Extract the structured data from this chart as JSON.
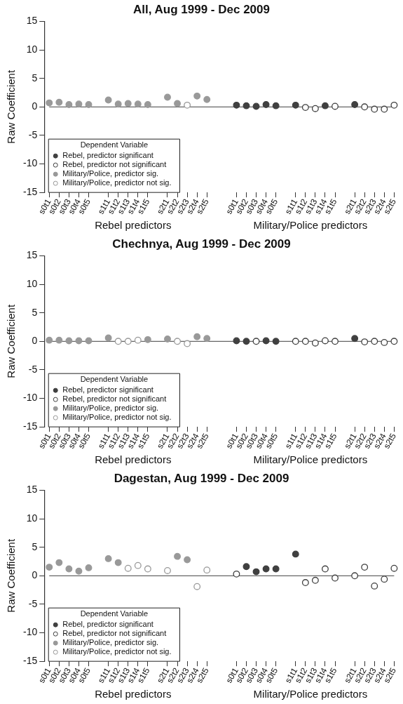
{
  "chart_data": [
    {
      "type": "scatter",
      "title": "All, Aug 1999 - Dec 2009",
      "ylabel": "Raw Coefficient",
      "legend_title": "Dependent Variable",
      "legend": "bottom left",
      "ylim": [
        -15,
        15
      ],
      "yticks": [
        -15,
        -10,
        -5,
        0,
        5,
        10,
        15
      ],
      "grid": false,
      "categories": [
        "s0t1",
        "s0t2",
        "s0t3",
        "s0t4",
        "s0t5",
        null,
        "s1t1",
        "s1t2",
        "s1t3",
        "s1t4",
        "s1t5",
        null,
        "s2t1",
        "s2t2",
        "s2t3",
        "s2t4",
        "s2t5",
        null,
        null,
        "s0t1",
        "s0t2",
        "s0t3",
        "s0t4",
        "s0t5",
        null,
        "s1t1",
        "s1t2",
        "s1t3",
        "s1t4",
        "s1t5",
        null,
        "s2t1",
        "s2t2",
        "s2t3",
        "s2t4",
        "s2t5"
      ],
      "ref_lines": [
        {
          "axis": "y",
          "value": 0,
          "color": "#666666"
        }
      ],
      "annotations": [
        "Rebel predictors",
        "Military/Police predictors"
      ],
      "series": [
        {
          "name": "Rebel, predictor significant",
          "color": "#404040",
          "marker": "circle",
          "values": [
            null,
            null,
            null,
            null,
            null,
            null,
            null,
            null,
            null,
            null,
            null,
            null,
            null,
            null,
            null,
            null,
            null,
            null,
            null,
            0.3,
            0.2,
            0.1,
            0.4,
            0.2,
            null,
            0.3,
            null,
            null,
            0.2,
            null,
            null,
            0.4,
            null,
            null,
            null,
            null
          ]
        },
        {
          "name": "Rebel, predictor not significant",
          "color": "#404040",
          "marker": "open circle",
          "values": [
            null,
            null,
            null,
            null,
            null,
            null,
            null,
            null,
            null,
            null,
            null,
            null,
            null,
            null,
            null,
            null,
            null,
            null,
            null,
            null,
            null,
            null,
            null,
            null,
            null,
            null,
            -0.1,
            -0.3,
            null,
            0.1,
            null,
            null,
            0,
            -0.4,
            -0.4,
            0.3
          ]
        },
        {
          "name": "Military/Police, predictor sig.",
          "color": "#999999",
          "marker": "circle",
          "values": [
            0.7,
            0.8,
            0.4,
            0.5,
            0.4,
            null,
            1.2,
            0.5,
            0.6,
            0.5,
            0.4,
            null,
            1.7,
            0.6,
            null,
            1.9,
            1.3,
            null,
            null,
            null,
            null,
            null,
            null,
            null,
            null,
            null,
            null,
            null,
            null,
            null,
            null,
            null,
            null,
            null,
            null,
            null
          ]
        },
        {
          "name": "Military/Police, predictor not sig.",
          "color": "#999999",
          "marker": "open circle",
          "values": [
            null,
            null,
            null,
            null,
            null,
            null,
            null,
            null,
            null,
            null,
            null,
            null,
            null,
            null,
            0.3,
            null,
            null,
            null,
            null,
            null,
            null,
            null,
            null,
            null,
            null,
            null,
            null,
            null,
            null,
            null,
            null,
            null,
            null,
            null,
            null,
            null
          ]
        }
      ]
    },
    {
      "type": "scatter",
      "title": "Chechnya, Aug 1999 - Dec 2009",
      "ylabel": "Raw Coefficient",
      "legend_title": "Dependent Variable",
      "legend": "bottom left",
      "ylim": [
        -15,
        15
      ],
      "yticks": [
        -15,
        -10,
        -5,
        0,
        5,
        10,
        15
      ],
      "grid": false,
      "categories": [
        "s0t1",
        "s0t2",
        "s0t3",
        "s0t4",
        "s0t5",
        null,
        "s1t1",
        "s1t2",
        "s1t3",
        "s1t4",
        "s1t5",
        null,
        "s2t1",
        "s2t2",
        "s2t3",
        "s2t4",
        "s2t5",
        null,
        null,
        "s0t1",
        "s0t2",
        "s0t3",
        "s0t4",
        "s0t5",
        null,
        "s1t1",
        "s1t2",
        "s1t3",
        "s1t4",
        "s1t5",
        null,
        "s2t1",
        "s2t2",
        "s2t3",
        "s2t4",
        "s2t5"
      ],
      "ref_lines": [
        {
          "axis": "y",
          "value": 0,
          "color": "#666666"
        }
      ],
      "annotations": [
        "Rebel predictors",
        "Military/Police predictors"
      ],
      "series": [
        {
          "name": "Rebel, predictor significant",
          "color": "#404040",
          "marker": "circle",
          "values": [
            null,
            null,
            null,
            null,
            null,
            null,
            null,
            null,
            null,
            null,
            null,
            null,
            null,
            null,
            null,
            null,
            null,
            null,
            null,
            0.1,
            0,
            null,
            0.1,
            0,
            null,
            null,
            null,
            null,
            null,
            null,
            null,
            0.5,
            null,
            null,
            null,
            null
          ]
        },
        {
          "name": "Rebel, predictor not significant",
          "color": "#404040",
          "marker": "open circle",
          "values": [
            null,
            null,
            null,
            null,
            null,
            null,
            null,
            null,
            null,
            null,
            null,
            null,
            null,
            null,
            null,
            null,
            null,
            null,
            null,
            null,
            null,
            0,
            null,
            null,
            null,
            0,
            0,
            -0.3,
            0.1,
            0,
            null,
            null,
            -0.1,
            0,
            -0.2,
            0
          ]
        },
        {
          "name": "Military/Police, predictor sig.",
          "color": "#999999",
          "marker": "circle",
          "values": [
            0.2,
            0.2,
            0.1,
            0.1,
            0.1,
            null,
            0.6,
            null,
            null,
            null,
            0.3,
            null,
            0.4,
            null,
            null,
            0.8,
            0.5,
            null,
            null,
            null,
            null,
            null,
            null,
            null,
            null,
            null,
            null,
            null,
            null,
            null,
            null,
            null,
            null,
            null,
            null,
            null
          ]
        },
        {
          "name": "Military/Police, predictor not sig.",
          "color": "#999999",
          "marker": "open circle",
          "values": [
            null,
            null,
            null,
            null,
            null,
            null,
            null,
            0,
            0,
            0.2,
            null,
            null,
            null,
            0,
            -0.4,
            null,
            null,
            null,
            null,
            null,
            null,
            null,
            null,
            null,
            null,
            null,
            null,
            null,
            null,
            null,
            null,
            null,
            null,
            null,
            null,
            null
          ]
        }
      ]
    },
    {
      "type": "scatter",
      "title": "Dagestan, Aug 1999 - Dec 2009",
      "ylabel": "Raw Coefficient",
      "legend_title": "Dependent Variable",
      "legend": "bottom left",
      "ylim": [
        -15,
        15
      ],
      "yticks": [
        -15,
        -10,
        -5,
        0,
        5,
        10,
        15
      ],
      "grid": false,
      "categories": [
        "s0t1",
        "s0t2",
        "s0t3",
        "s0t4",
        "s0t5",
        null,
        "s1t1",
        "s1t2",
        "s1t3",
        "s1t4",
        "s1t5",
        null,
        "s2t1",
        "s2t2",
        "s2t3",
        "s2t4",
        "s2t5",
        null,
        null,
        "s0t1",
        "s0t2",
        "s0t3",
        "s0t4",
        "s0t5",
        null,
        "s1t1",
        "s1t2",
        "s1t3",
        "s1t4",
        "s1t5",
        null,
        "s2t1",
        "s2t2",
        "s2t3",
        "s2t4",
        "s2t5"
      ],
      "ref_lines": [
        {
          "axis": "y",
          "value": 0,
          "color": "#666666"
        }
      ],
      "annotations": [
        "Rebel predictors",
        "Military/Police predictors"
      ],
      "series": [
        {
          "name": "Rebel, predictor significant",
          "color": "#404040",
          "marker": "circle",
          "values": [
            null,
            null,
            null,
            null,
            null,
            null,
            null,
            null,
            null,
            null,
            null,
            null,
            null,
            null,
            null,
            null,
            null,
            null,
            null,
            null,
            1.6,
            0.7,
            1.2,
            1.2,
            null,
            3.8,
            null,
            null,
            null,
            null,
            null,
            null,
            null,
            null,
            null,
            null
          ]
        },
        {
          "name": "Rebel, predictor not significant",
          "color": "#404040",
          "marker": "open circle",
          "values": [
            null,
            null,
            null,
            null,
            null,
            null,
            null,
            null,
            null,
            null,
            null,
            null,
            null,
            null,
            null,
            null,
            null,
            null,
            null,
            0.3,
            null,
            null,
            null,
            null,
            null,
            null,
            -1.2,
            -0.8,
            1.2,
            -0.4,
            null,
            0,
            1.5,
            -1.8,
            -0.6,
            1.3
          ]
        },
        {
          "name": "Military/Police, predictor sig.",
          "color": "#999999",
          "marker": "circle",
          "values": [
            1.5,
            2.3,
            1.2,
            0.8,
            1.4,
            null,
            3.0,
            2.3,
            null,
            null,
            null,
            null,
            null,
            3.4,
            2.8,
            null,
            null,
            null,
            null,
            null,
            null,
            null,
            null,
            null,
            null,
            null,
            null,
            null,
            null,
            null,
            null,
            null,
            null,
            null,
            null,
            null
          ]
        },
        {
          "name": "Military/Police, predictor not sig.",
          "color": "#999999",
          "marker": "open circle",
          "values": [
            null,
            null,
            null,
            null,
            null,
            null,
            null,
            null,
            1.3,
            1.8,
            1.2,
            null,
            0.9,
            null,
            null,
            -1.9,
            1.0,
            null,
            null,
            null,
            null,
            null,
            null,
            null,
            null,
            null,
            null,
            null,
            null,
            null,
            null,
            null,
            null,
            null,
            null,
            null
          ]
        }
      ]
    }
  ]
}
